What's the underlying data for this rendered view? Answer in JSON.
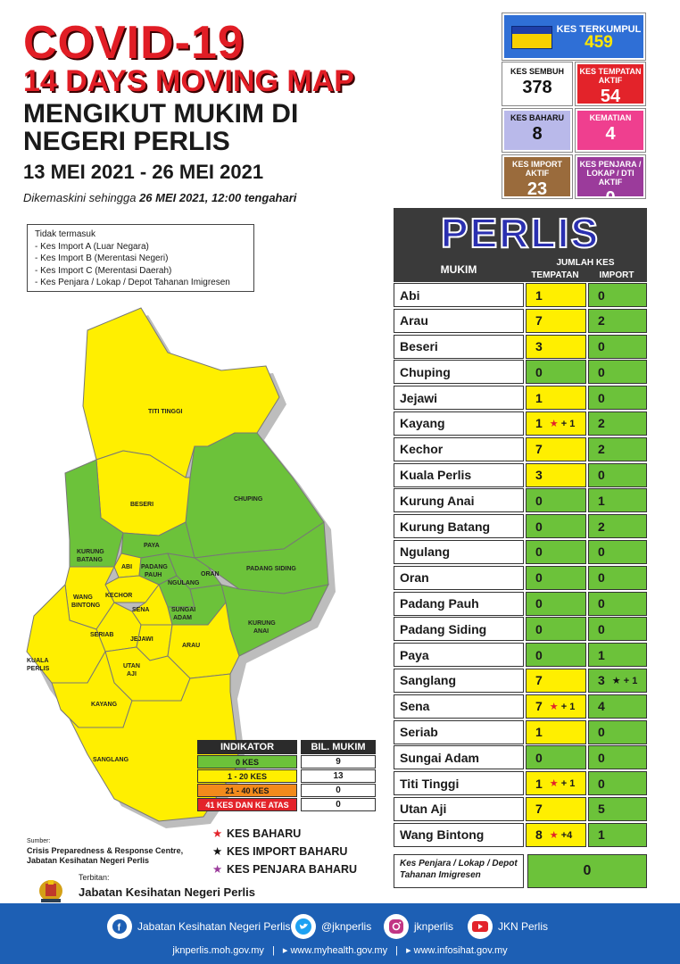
{
  "header": {
    "title": "COVID-19",
    "subtitle": "14 DAYS MOVING MAP",
    "heading_line1": "MENGIKUT MUKIM DI",
    "heading_line2": "NEGERI PERLIS",
    "date_range": "13 MEI 2021 - 26 MEI 2021",
    "update_prefix": "Dikemaskini sehingga",
    "update_bold": "26 MEI 2021, 12:00 tengahari"
  },
  "notes": {
    "title": "Tidak termasuk",
    "items": [
      "- Kes Import A (Luar Negara)",
      "- Kes Import B (Merentasi Negeri)",
      "- Kes Import C (Merentasi Daerah)",
      "- Kes Penjara / Lokap / Depot Tahanan Imigresen"
    ]
  },
  "stats": {
    "total": {
      "label": "KES TERKUMPUL",
      "value": "459"
    },
    "sembuh": {
      "label": "KES SEMBUH",
      "value": "378"
    },
    "aktif": {
      "label": "KES TEMPATAN AKTIF",
      "value": "54"
    },
    "baharu": {
      "label": "KES BAHARU",
      "value": "8"
    },
    "kematian": {
      "label": "KEMATIAN",
      "value": "4"
    },
    "import_aktif": {
      "label": "KES IMPORT AKTIF",
      "value": "23"
    },
    "penjara_aktif": {
      "label": "KES PENJARA / LOKAP / DTI AKTIF",
      "value": "0"
    }
  },
  "table": {
    "state": "PERLIS",
    "col_mukim": "MUKIM",
    "col_jumlah": "JUMLAH KES",
    "col_tempatan": "TEMPATAN",
    "col_import": "IMPORT",
    "rows": [
      {
        "name": "Abi",
        "tempatan": "1",
        "tempatan_extra": "",
        "import": "0",
        "import_extra": ""
      },
      {
        "name": "Arau",
        "tempatan": "7",
        "tempatan_extra": "",
        "import": "2",
        "import_extra": ""
      },
      {
        "name": "Beseri",
        "tempatan": "3",
        "tempatan_extra": "",
        "import": "0",
        "import_extra": ""
      },
      {
        "name": "Chuping",
        "tempatan": "0",
        "tempatan_extra": "",
        "import": "0",
        "import_extra": ""
      },
      {
        "name": "Jejawi",
        "tempatan": "1",
        "tempatan_extra": "",
        "import": "0",
        "import_extra": ""
      },
      {
        "name": "Kayang",
        "tempatan": "1",
        "tempatan_extra": "+ 1",
        "import": "2",
        "import_extra": ""
      },
      {
        "name": "Kechor",
        "tempatan": "7",
        "tempatan_extra": "",
        "import": "2",
        "import_extra": ""
      },
      {
        "name": "Kuala Perlis",
        "tempatan": "3",
        "tempatan_extra": "",
        "import": "0",
        "import_extra": ""
      },
      {
        "name": "Kurung Anai",
        "tempatan": "0",
        "tempatan_extra": "",
        "import": "1",
        "import_extra": ""
      },
      {
        "name": "Kurung Batang",
        "tempatan": "0",
        "tempatan_extra": "",
        "import": "2",
        "import_extra": ""
      },
      {
        "name": "Ngulang",
        "tempatan": "0",
        "tempatan_extra": "",
        "import": "0",
        "import_extra": ""
      },
      {
        "name": "Oran",
        "tempatan": "0",
        "tempatan_extra": "",
        "import": "0",
        "import_extra": ""
      },
      {
        "name": "Padang Pauh",
        "tempatan": "0",
        "tempatan_extra": "",
        "import": "0",
        "import_extra": ""
      },
      {
        "name": "Padang Siding",
        "tempatan": "0",
        "tempatan_extra": "",
        "import": "0",
        "import_extra": ""
      },
      {
        "name": "Paya",
        "tempatan": "0",
        "tempatan_extra": "",
        "import": "1",
        "import_extra": ""
      },
      {
        "name": "Sanglang",
        "tempatan": "7",
        "tempatan_extra": "",
        "import": "3",
        "import_extra": "+ 1"
      },
      {
        "name": "Sena",
        "tempatan": "7",
        "tempatan_extra": "+ 1",
        "import": "4",
        "import_extra": ""
      },
      {
        "name": "Seriab",
        "tempatan": "1",
        "tempatan_extra": "",
        "import": "0",
        "import_extra": ""
      },
      {
        "name": "Sungai Adam",
        "tempatan": "0",
        "tempatan_extra": "",
        "import": "0",
        "import_extra": ""
      },
      {
        "name": "Titi Tinggi",
        "tempatan": "1",
        "tempatan_extra": "+ 1",
        "import": "0",
        "import_extra": ""
      },
      {
        "name": "Utan Aji",
        "tempatan": "7",
        "tempatan_extra": "",
        "import": "5",
        "import_extra": ""
      },
      {
        "name": "Wang Bintong",
        "tempatan": "8",
        "tempatan_extra": "+4",
        "import": "1",
        "import_extra": ""
      }
    ],
    "penjara_label": "Kes Penjara / Lokap / Depot Tahanan Imigresen",
    "penjara_value": "0"
  },
  "colors": {
    "green": "#6cc23a",
    "yellow": "#ffef00",
    "orange": "#f28a1c",
    "red": "#e3232a"
  },
  "indicator": {
    "head_a": "INDIKATOR",
    "head_b": "BIL. MUKIM",
    "rows": [
      {
        "label": "0 KES",
        "count": "9",
        "color": "#6cc23a"
      },
      {
        "label": "1 - 20 KES",
        "count": "13",
        "color": "#ffef00"
      },
      {
        "label": "21 - 40 KES",
        "count": "0",
        "color": "#f28a1c"
      },
      {
        "label": "41 KES DAN KE ATAS",
        "count": "0",
        "color": "#e3232a"
      }
    ]
  },
  "legend": {
    "baharu": "KES BAHARU",
    "import_baharu": "KES IMPORT BAHARU",
    "penjara_baharu": "KES PENJARA BAHARU"
  },
  "map_labels": {
    "titi_tinggi": "TITI TINGGI",
    "beseri": "BESERI",
    "chuping": "CHUPING",
    "kurung_batang_1": "KURUNG",
    "kurung_batang_2": "BATANG",
    "paya": "PAYA",
    "abi": "ABI",
    "padang_pauh_1": "PADANG",
    "padang_pauh_2": "PAUH",
    "oran": "ORAN",
    "padang_siding": "PADANG SIDING",
    "ngulang": "NGULANG",
    "kechor": "KECHOR",
    "wang_bintong_1": "WANG",
    "wang_bintong_2": "BINTONG",
    "sena": "SENA",
    "sungai_adam_1": "SUNGAI",
    "sungai_adam_2": "ADAM",
    "seriab": "SERIAB",
    "jejawi": "JEJAWI",
    "arau": "ARAU",
    "kurung_anai_1": "KURUNG",
    "kurung_anai_2": "ANAI",
    "kuala_perlis_1": "KUALA",
    "kuala_perlis_2": "PERLIS",
    "utan_aji_1": "UTAN",
    "utan_aji_2": "AJI",
    "kayang": "KAYANG",
    "sanglang": "SANGLANG"
  },
  "source": {
    "label": "Sumber:",
    "line1": "Crisis Preparedness & Response Centre,",
    "line2": "Jabatan Kesihatan Negeri Perlis"
  },
  "publisher": {
    "label": "Terbitan:",
    "name": "Jabatan Kesihatan Negeri Perlis"
  },
  "footer": {
    "facebook": "Jabatan Kesihatan Negeri Perlis",
    "twitter": "@jknperlis",
    "instagram": "jknperlis",
    "youtube": "JKN Perlis",
    "link1": "jknperlis.moh.gov.my",
    "link2": "www.myhealth.gov.my",
    "link3": "www.infosihat.gov.my"
  }
}
